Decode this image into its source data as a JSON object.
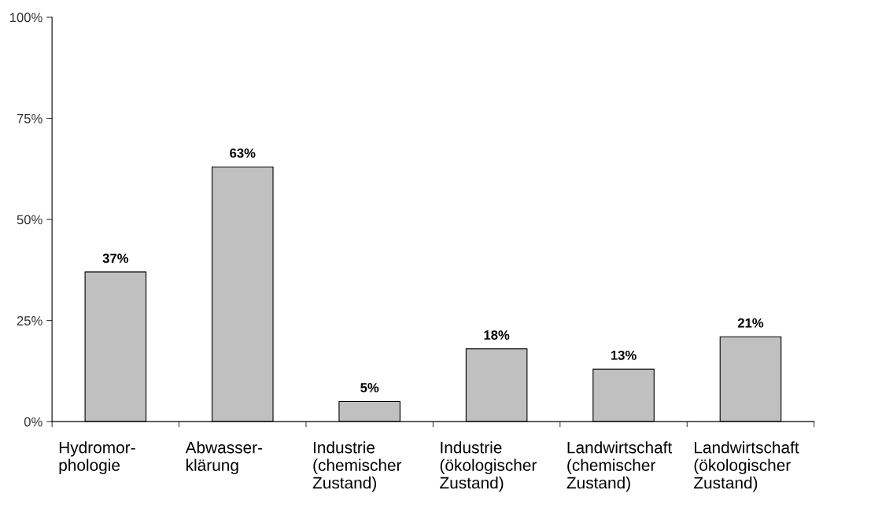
{
  "chart_data": {
    "type": "bar",
    "categories": [
      "Hydromor-\nphologie",
      "Abwasser-\nklärung",
      "Industrie\n(chemischer\nZustand)",
      "Industrie\n(ökologischer\nZustand)",
      "Landwirtschaft\n(chemischer\nZustand)",
      "Landwirtschaft\n(ökologischer\nZustand)"
    ],
    "values": [
      37,
      63,
      5,
      18,
      13,
      21
    ],
    "value_labels": [
      "37%",
      "63%",
      "5%",
      "18%",
      "13%",
      "21%"
    ],
    "color": "#c0c0c0",
    "ylim": [
      0,
      100
    ],
    "yticks": [
      {
        "value": 0,
        "label": "0%"
      },
      {
        "value": 25,
        "label": "25%"
      },
      {
        "value": 50,
        "label": "50%"
      },
      {
        "value": 75,
        "label": "75%"
      },
      {
        "value": 100,
        "label": "100%"
      }
    ],
    "grid": false,
    "legend": false
  }
}
